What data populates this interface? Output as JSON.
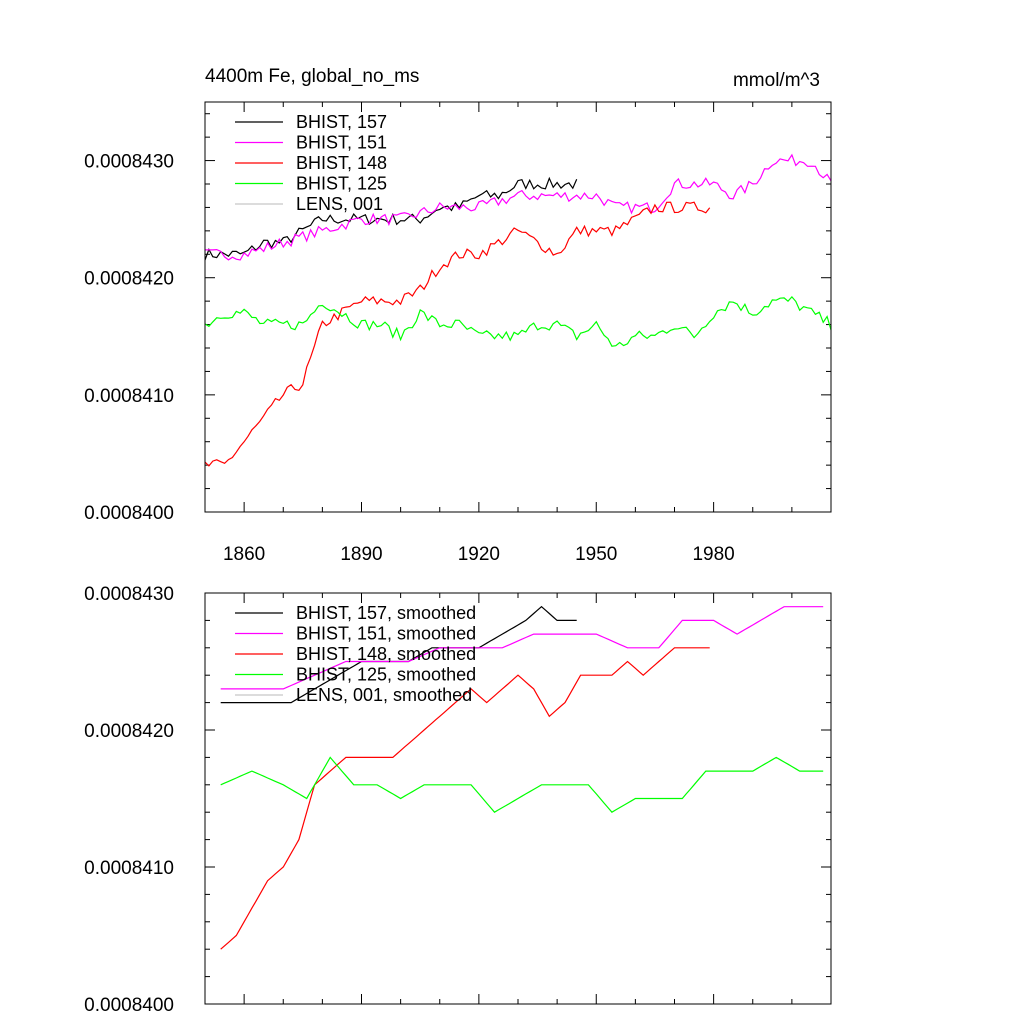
{
  "chart_data": [
    {
      "type": "line",
      "title": "4400m Fe, global_no_ms",
      "units": "mmol/m^3",
      "xlim": [
        1850,
        2010
      ],
      "ylim": [
        0.00084,
        0.0008435
      ],
      "x_tick_labels": [
        "1860",
        "1890",
        "1920",
        "1950",
        "1980"
      ],
      "x_tick_values": [
        1860,
        1890,
        1920,
        1950,
        1980
      ],
      "y_tick_labels": [
        "0.0008400",
        "0.0008410",
        "0.0008420",
        "0.0008430"
      ],
      "y_tick_values": [
        0.00084,
        0.000841,
        0.000842,
        0.000843
      ],
      "legend_position": "top-left",
      "series": [
        {
          "name": "BHIST, 157",
          "color": "#000000",
          "style": "noisy",
          "points": [
            [
              1850,
              0.0008422
            ],
            [
              1855,
              0.0008422
            ],
            [
              1860,
              0.0008422
            ],
            [
              1865,
              0.0008423
            ],
            [
              1870,
              0.0008423
            ],
            [
              1875,
              0.0008424
            ],
            [
              1880,
              0.0008425
            ],
            [
              1885,
              0.0008425
            ],
            [
              1890,
              0.0008425
            ],
            [
              1895,
              0.0008425
            ],
            [
              1900,
              0.0008425
            ],
            [
              1905,
              0.0008425
            ],
            [
              1910,
              0.0008426
            ],
            [
              1915,
              0.0008426
            ],
            [
              1920,
              0.0008427
            ],
            [
              1925,
              0.0008427
            ],
            [
              1930,
              0.0008428
            ],
            [
              1935,
              0.0008428
            ],
            [
              1940,
              0.0008428
            ],
            [
              1945,
              0.0008428
            ]
          ]
        },
        {
          "name": "BHIST, 151",
          "color": "#ff00ff",
          "style": "noisy",
          "points": [
            [
              1850,
              0.0008422
            ],
            [
              1860,
              0.0008422
            ],
            [
              1870,
              0.0008423
            ],
            [
              1880,
              0.0008424
            ],
            [
              1890,
              0.0008425
            ],
            [
              1900,
              0.0008425
            ],
            [
              1910,
              0.0008426
            ],
            [
              1920,
              0.0008426
            ],
            [
              1930,
              0.0008427
            ],
            [
              1940,
              0.0008427
            ],
            [
              1950,
              0.0008427
            ],
            [
              1955,
              0.0008426
            ],
            [
              1960,
              0.0008426
            ],
            [
              1965,
              0.0008426
            ],
            [
              1970,
              0.0008428
            ],
            [
              1975,
              0.0008428
            ],
            [
              1980,
              0.0008428
            ],
            [
              1985,
              0.0008427
            ],
            [
              1990,
              0.0008428
            ],
            [
              1995,
              0.000843
            ],
            [
              2000,
              0.000843
            ],
            [
              2005,
              0.000843
            ],
            [
              2010,
              0.0008428
            ]
          ]
        },
        {
          "name": "BHIST, 148",
          "color": "#ff0000",
          "style": "noisy",
          "points": [
            [
              1850,
              0.0008404
            ],
            [
              1855,
              0.0008404
            ],
            [
              1860,
              0.0008406
            ],
            [
              1865,
              0.0008408
            ],
            [
              1870,
              0.000841
            ],
            [
              1875,
              0.0008411
            ],
            [
              1880,
              0.0008416
            ],
            [
              1885,
              0.0008417
            ],
            [
              1890,
              0.0008418
            ],
            [
              1895,
              0.0008418
            ],
            [
              1900,
              0.0008418
            ],
            [
              1905,
              0.0008419
            ],
            [
              1910,
              0.0008421
            ],
            [
              1915,
              0.0008422
            ],
            [
              1920,
              0.0008422
            ],
            [
              1925,
              0.0008423
            ],
            [
              1930,
              0.0008424
            ],
            [
              1935,
              0.0008423
            ],
            [
              1940,
              0.0008422
            ],
            [
              1945,
              0.0008424
            ],
            [
              1950,
              0.0008424
            ],
            [
              1955,
              0.0008424
            ],
            [
              1960,
              0.0008425
            ],
            [
              1965,
              0.0008426
            ],
            [
              1970,
              0.0008426
            ],
            [
              1975,
              0.0008426
            ],
            [
              1979,
              0.0008426
            ]
          ]
        },
        {
          "name": "BHIST, 125",
          "color": "#00ff00",
          "style": "noisy",
          "points": [
            [
              1850,
              0.0008416
            ],
            [
              1855,
              0.0008417
            ],
            [
              1860,
              0.0008417
            ],
            [
              1865,
              0.0008416
            ],
            [
              1870,
              0.0008416
            ],
            [
              1875,
              0.0008416
            ],
            [
              1880,
              0.0008418
            ],
            [
              1885,
              0.0008417
            ],
            [
              1890,
              0.0008416
            ],
            [
              1895,
              0.0008416
            ],
            [
              1900,
              0.0008415
            ],
            [
              1905,
              0.0008417
            ],
            [
              1910,
              0.0008416
            ],
            [
              1915,
              0.0008416
            ],
            [
              1920,
              0.0008415
            ],
            [
              1925,
              0.0008415
            ],
            [
              1930,
              0.0008415
            ],
            [
              1935,
              0.0008416
            ],
            [
              1940,
              0.0008416
            ],
            [
              1945,
              0.0008415
            ],
            [
              1950,
              0.0008416
            ],
            [
              1955,
              0.0008414
            ],
            [
              1960,
              0.0008415
            ],
            [
              1965,
              0.0008415
            ],
            [
              1970,
              0.0008416
            ],
            [
              1975,
              0.0008415
            ],
            [
              1980,
              0.0008417
            ],
            [
              1985,
              0.0008418
            ],
            [
              1990,
              0.0008417
            ],
            [
              1995,
              0.0008418
            ],
            [
              2000,
              0.0008418
            ],
            [
              2005,
              0.0008417
            ],
            [
              2010,
              0.0008416
            ]
          ]
        },
        {
          "name": "LENS, 001",
          "color": "#c8c8c8",
          "style": "smooth",
          "points": []
        }
      ]
    },
    {
      "type": "line",
      "xlim": [
        1850,
        2010
      ],
      "ylim": [
        0.00084,
        0.000843
      ],
      "y_tick_labels": [
        "0.0008400",
        "0.0008410",
        "0.0008420",
        "0.0008430"
      ],
      "y_tick_values": [
        0.00084,
        0.000841,
        0.000842,
        0.000843
      ],
      "legend_position": "top-left",
      "series": [
        {
          "name": "BHIST, 157, smoothed",
          "color": "#000000",
          "style": "smooth",
          "points": [
            [
              1854,
              0.0008422
            ],
            [
              1860,
              0.0008422
            ],
            [
              1866,
              0.0008422
            ],
            [
              1872,
              0.0008422
            ],
            [
              1878,
              0.0008423
            ],
            [
              1884,
              0.0008424
            ],
            [
              1890,
              0.0008425
            ],
            [
              1896,
              0.0008425
            ],
            [
              1902,
              0.0008425
            ],
            [
              1908,
              0.0008426
            ],
            [
              1914,
              0.0008426
            ],
            [
              1920,
              0.0008426
            ],
            [
              1926,
              0.0008427
            ],
            [
              1932,
              0.0008428
            ],
            [
              1936,
              0.0008429
            ],
            [
              1940,
              0.0008428
            ],
            [
              1945,
              0.0008428
            ]
          ]
        },
        {
          "name": "BHIST, 151, smoothed",
          "color": "#ff00ff",
          "style": "smooth",
          "points": [
            [
              1854,
              0.0008423
            ],
            [
              1862,
              0.0008423
            ],
            [
              1870,
              0.0008423
            ],
            [
              1878,
              0.0008424
            ],
            [
              1886,
              0.0008425
            ],
            [
              1894,
              0.0008425
            ],
            [
              1902,
              0.0008425
            ],
            [
              1910,
              0.0008426
            ],
            [
              1918,
              0.0008426
            ],
            [
              1926,
              0.0008426
            ],
            [
              1934,
              0.0008427
            ],
            [
              1942,
              0.0008427
            ],
            [
              1950,
              0.0008427
            ],
            [
              1958,
              0.0008426
            ],
            [
              1966,
              0.0008426
            ],
            [
              1972,
              0.0008428
            ],
            [
              1980,
              0.0008428
            ],
            [
              1986,
              0.0008427
            ],
            [
              1992,
              0.0008428
            ],
            [
              1998,
              0.0008429
            ],
            [
              2004,
              0.0008429
            ],
            [
              2008,
              0.0008429
            ]
          ]
        },
        {
          "name": "BHIST, 148, smoothed",
          "color": "#ff0000",
          "style": "smooth",
          "points": [
            [
              1854,
              0.0008404
            ],
            [
              1858,
              0.0008405
            ],
            [
              1862,
              0.0008407
            ],
            [
              1866,
              0.0008409
            ],
            [
              1870,
              0.000841
            ],
            [
              1874,
              0.0008412
            ],
            [
              1878,
              0.0008416
            ],
            [
              1882,
              0.0008417
            ],
            [
              1886,
              0.0008418
            ],
            [
              1890,
              0.0008418
            ],
            [
              1894,
              0.0008418
            ],
            [
              1898,
              0.0008418
            ],
            [
              1902,
              0.0008419
            ],
            [
              1906,
              0.000842
            ],
            [
              1910,
              0.0008421
            ],
            [
              1914,
              0.0008422
            ],
            [
              1918,
              0.0008423
            ],
            [
              1922,
              0.0008422
            ],
            [
              1926,
              0.0008423
            ],
            [
              1930,
              0.0008424
            ],
            [
              1934,
              0.0008423
            ],
            [
              1938,
              0.0008421
            ],
            [
              1942,
              0.0008422
            ],
            [
              1946,
              0.0008424
            ],
            [
              1950,
              0.0008424
            ],
            [
              1954,
              0.0008424
            ],
            [
              1958,
              0.0008425
            ],
            [
              1962,
              0.0008424
            ],
            [
              1966,
              0.0008425
            ],
            [
              1970,
              0.0008426
            ],
            [
              1974,
              0.0008426
            ],
            [
              1979,
              0.0008426
            ]
          ]
        },
        {
          "name": "BHIST, 125, smoothed",
          "color": "#00ff00",
          "style": "smooth",
          "points": [
            [
              1854,
              0.0008416
            ],
            [
              1862,
              0.0008417
            ],
            [
              1870,
              0.0008416
            ],
            [
              1876,
              0.0008415
            ],
            [
              1882,
              0.0008418
            ],
            [
              1888,
              0.0008416
            ],
            [
              1894,
              0.0008416
            ],
            [
              1900,
              0.0008415
            ],
            [
              1906,
              0.0008416
            ],
            [
              1912,
              0.0008416
            ],
            [
              1918,
              0.0008416
            ],
            [
              1924,
              0.0008414
            ],
            [
              1930,
              0.0008415
            ],
            [
              1936,
              0.0008416
            ],
            [
              1942,
              0.0008416
            ],
            [
              1948,
              0.0008416
            ],
            [
              1954,
              0.0008414
            ],
            [
              1960,
              0.0008415
            ],
            [
              1966,
              0.0008415
            ],
            [
              1972,
              0.0008415
            ],
            [
              1978,
              0.0008417
            ],
            [
              1984,
              0.0008417
            ],
            [
              1990,
              0.0008417
            ],
            [
              1996,
              0.0008418
            ],
            [
              2002,
              0.0008417
            ],
            [
              2008,
              0.0008417
            ]
          ]
        },
        {
          "name": "LENS, 001, smoothed",
          "color": "#c8c8c8",
          "style": "smooth",
          "points": []
        }
      ]
    }
  ]
}
